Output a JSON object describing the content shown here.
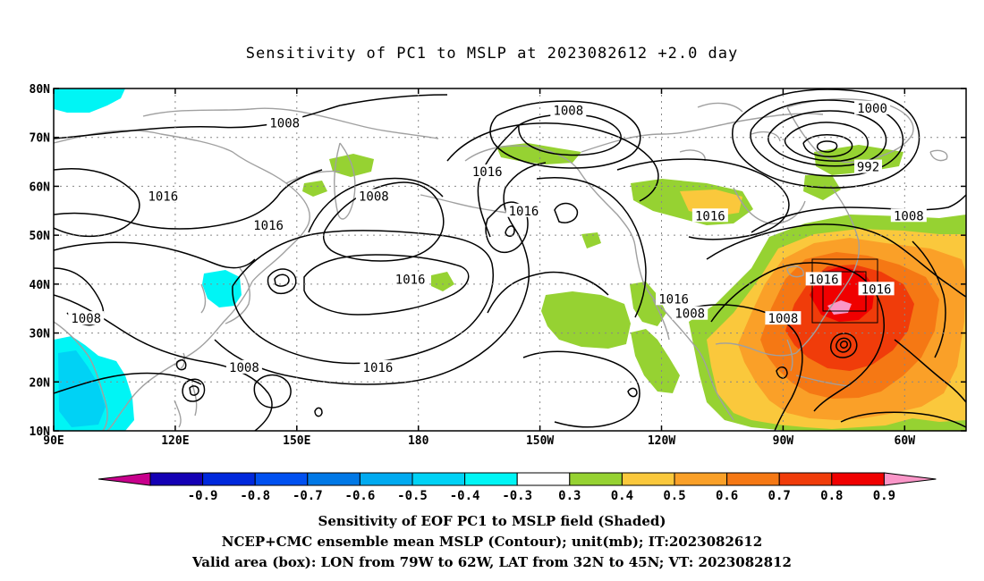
{
  "title": "Sensitivity of PC1 to MSLP at 2023082612 +2.0 day",
  "lat_labels": [
    "80N",
    "70N",
    "60N",
    "50N",
    "40N",
    "30N",
    "20N",
    "10N"
  ],
  "lon_labels": [
    "90E",
    "120E",
    "150E",
    "180",
    "150W",
    "120W",
    "90W",
    "60W"
  ],
  "contour_labels": [
    {
      "text": "1008",
      "lon": 147,
      "lat": 73
    },
    {
      "text": "1008",
      "lon": -143,
      "lat": 75.5
    },
    {
      "text": "1000",
      "lon": -68,
      "lat": 76
    },
    {
      "text": "992",
      "lon": -69,
      "lat": 64
    },
    {
      "text": "1016",
      "lon": -163,
      "lat": 63
    },
    {
      "text": "1016",
      "lon": -154,
      "lat": 55
    },
    {
      "text": "1008",
      "lon": 169,
      "lat": 58
    },
    {
      "text": "1016",
      "lon": 117,
      "lat": 58
    },
    {
      "text": "1016",
      "lon": 143,
      "lat": 52
    },
    {
      "text": "1016",
      "lon": -108,
      "lat": 54
    },
    {
      "text": "1008",
      "lon": -59,
      "lat": 54
    },
    {
      "text": "1016",
      "lon": -80,
      "lat": 41
    },
    {
      "text": "1016",
      "lon": -67,
      "lat": 39
    },
    {
      "text": "1016",
      "lon": 178,
      "lat": 41
    },
    {
      "text": "1016",
      "lon": -117,
      "lat": 37
    },
    {
      "text": "1008",
      "lon": -113,
      "lat": 34
    },
    {
      "text": "1008",
      "lon": -90,
      "lat": 33
    },
    {
      "text": "1008",
      "lon": 98,
      "lat": 33
    },
    {
      "text": "1008",
      "lon": 137,
      "lat": 23
    },
    {
      "text": "1016",
      "lon": 170,
      "lat": 23
    }
  ],
  "colorbar": {
    "tick_labels": [
      "-0.9",
      "-0.8",
      "-0.7",
      "-0.6",
      "-0.5",
      "-0.4",
      "-0.3",
      "0.3",
      "0.4",
      "0.5",
      "0.6",
      "0.7",
      "0.8",
      "0.9"
    ],
    "colors": [
      "#1400b4",
      "#0028dc",
      "#0050f0",
      "#0078e6",
      "#00aaf0",
      "#00d2f5",
      "#00f5f5",
      "#ffffff",
      "#96d232",
      "#fac83c",
      "#faa028",
      "#f57814",
      "#f03c0a",
      "#f00000"
    ],
    "under_color": "#c8008c",
    "over_color": "#fa96c8"
  },
  "valid_box": {
    "lon_min": -79,
    "lon_max": -62,
    "lat_min": 32,
    "lat_max": 45
  },
  "captions": [
    "Sensitivity of EOF PC1 to MSLP field (Shaded)",
    "NCEP+CMC ensemble mean MSLP (Contour); unit(mb); IT:2023082612",
    "Valid area (box): LON from 79W to 62W, LAT from 32N to 45N; VT: 2023082812"
  ]
}
